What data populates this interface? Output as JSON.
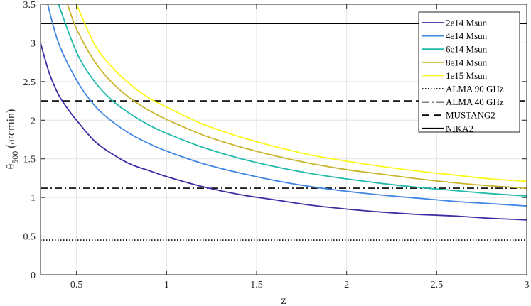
{
  "chart_data": {
    "type": "line",
    "title": "",
    "xlabel": "z",
    "ylabel_main": "θ",
    "ylabel_sub": "500",
    "ylabel_unit": "(arcmin)",
    "xlim": [
      0.3,
      3
    ],
    "ylim": [
      0,
      3.5
    ],
    "x_ticks": [
      0.5,
      1,
      1.5,
      2,
      2.5,
      3
    ],
    "x_tick_labels": [
      "0.5",
      "1",
      "1.5",
      "2",
      "2.5",
      "3"
    ],
    "y_ticks": [
      0,
      0.5,
      1,
      1.5,
      2,
      2.5,
      3,
      3.5
    ],
    "y_tick_labels": [
      "0",
      "0.5",
      "1",
      "1.5",
      "2",
      "2.5",
      "3",
      "3.5"
    ],
    "grid": true,
    "legend_position": "top-right",
    "series": [
      {
        "name": "2e14 Msun",
        "color": "#3b2ea3",
        "x": [
          0.3,
          0.35,
          0.4,
          0.45,
          0.5,
          0.6,
          0.7,
          0.8,
          0.9,
          1.0,
          1.2,
          1.4,
          1.6,
          1.8,
          2.0,
          2.2,
          2.4,
          2.6,
          2.8,
          3.0
        ],
        "y": [
          3.0,
          2.6,
          2.33,
          2.15,
          2.0,
          1.73,
          1.56,
          1.43,
          1.35,
          1.27,
          1.14,
          1.04,
          0.97,
          0.9,
          0.85,
          0.81,
          0.78,
          0.76,
          0.73,
          0.71
        ]
      },
      {
        "name": "4e14 Msun",
        "color": "#3f86e3",
        "x": [
          0.34,
          0.4,
          0.5,
          0.6,
          0.7,
          0.8,
          0.9,
          1.0,
          1.2,
          1.4,
          1.6,
          1.8,
          2.0,
          2.2,
          2.4,
          2.6,
          2.8,
          3.0
        ],
        "y": [
          3.5,
          3.0,
          2.52,
          2.19,
          1.98,
          1.82,
          1.7,
          1.6,
          1.44,
          1.32,
          1.22,
          1.14,
          1.08,
          1.03,
          0.99,
          0.95,
          0.92,
          0.89
        ]
      },
      {
        "name": "6e14 Msun",
        "color": "#1fbaaa",
        "x": [
          0.4,
          0.5,
          0.6,
          0.7,
          0.8,
          0.9,
          1.0,
          1.2,
          1.4,
          1.6,
          1.8,
          2.0,
          2.2,
          2.4,
          2.6,
          2.8,
          3.0
        ],
        "y": [
          3.5,
          2.88,
          2.5,
          2.25,
          2.08,
          1.94,
          1.83,
          1.65,
          1.51,
          1.4,
          1.31,
          1.24,
          1.18,
          1.13,
          1.09,
          1.05,
          1.02
        ]
      },
      {
        "name": "8e14 Msun",
        "color": "#c9b52c",
        "x": [
          0.45,
          0.5,
          0.6,
          0.7,
          0.8,
          0.9,
          1.0,
          1.2,
          1.4,
          1.6,
          1.8,
          2.0,
          2.2,
          2.4,
          2.6,
          2.8,
          3.0
        ],
        "y": [
          3.5,
          3.18,
          2.76,
          2.48,
          2.28,
          2.13,
          2.01,
          1.81,
          1.66,
          1.54,
          1.44,
          1.36,
          1.3,
          1.24,
          1.19,
          1.15,
          1.12
        ]
      },
      {
        "name": "1e15 Msun",
        "color": "#fafa1a",
        "x": [
          0.5,
          0.6,
          0.7,
          0.8,
          0.9,
          1.0,
          1.2,
          1.4,
          1.6,
          1.8,
          2.0,
          2.2,
          2.4,
          2.6,
          2.8,
          3.0
        ],
        "y": [
          3.5,
          2.98,
          2.68,
          2.46,
          2.29,
          2.17,
          1.95,
          1.79,
          1.66,
          1.55,
          1.47,
          1.4,
          1.34,
          1.29,
          1.24,
          1.21
        ]
      }
    ],
    "reference_lines": [
      {
        "name": "ALMA 90 GHz",
        "y": 0.45,
        "style": "dotted",
        "color": "#000000"
      },
      {
        "name": "ALMA 40 GHz",
        "y": 1.12,
        "style": "dashdot",
        "color": "#000000"
      },
      {
        "name": "MUSTANG2",
        "y": 2.25,
        "style": "dashed",
        "color": "#000000"
      },
      {
        "name": "NIKA2",
        "y": 3.25,
        "style": "solid",
        "color": "#000000"
      }
    ]
  }
}
